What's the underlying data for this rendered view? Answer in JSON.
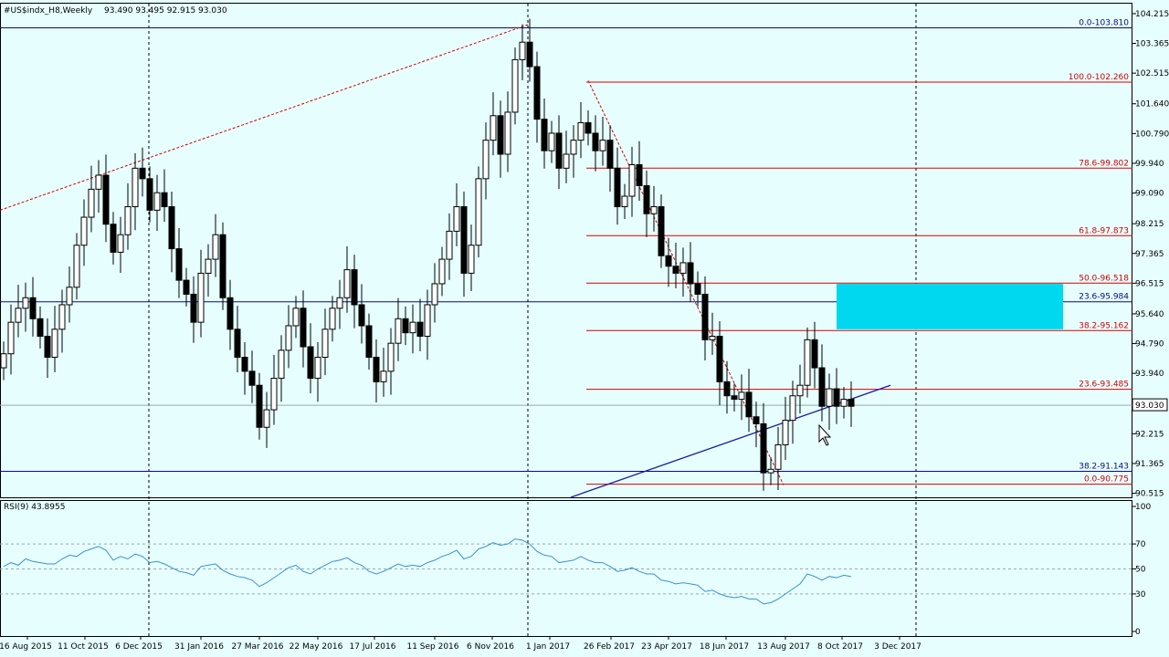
{
  "window": {
    "title": "#US$indx_H8,Weekly",
    "ohlc": "93.490 93.495 92.915 93.030"
  },
  "colors": {
    "background": "#e6fffe",
    "candle": "#000000",
    "grid": "#000000",
    "fib": "#d40000",
    "hline": "#0a0a7a",
    "trendline": "#1a1aa0",
    "zone": "#00d8f0",
    "rsi": "#3b8fd0"
  },
  "chart_data": {
    "type": "candlestick",
    "symbol": "#US$indx_H8",
    "timeframe": "Weekly",
    "last_price": "93.030",
    "price_axis_ticks": [
      "104.215",
      "103.365",
      "102.515",
      "101.640",
      "100.790",
      "99.940",
      "99.090",
      "98.215",
      "97.365",
      "96.515",
      "95.640",
      "94.790",
      "93.940",
      "93.090",
      "92.215",
      "91.365",
      "90.515"
    ],
    "date_axis_ticks": [
      "16 Aug 2015",
      "11 Oct 2015",
      "6 Dec 2015",
      "31 Jan 2016",
      "27 Mar 2016",
      "22 May 2016",
      "17 Jul 2016",
      "11 Sep 2016",
      "6 Nov 2016",
      "1 Jan 2017",
      "26 Feb 2017",
      "23 Apr 2017",
      "18 Jun 2017",
      "13 Aug 2017",
      "8 Oct 2017",
      "3 Dec 2017"
    ],
    "ylim": [
      90.4,
      104.5
    ],
    "fib_levels": [
      {
        "label": "0.0-103.810",
        "value": 103.81,
        "kind": "blue"
      },
      {
        "label": "100.0-102.260",
        "value": 102.26,
        "kind": "red"
      },
      {
        "label": "78.6-99.802",
        "value": 99.802,
        "kind": "red"
      },
      {
        "label": "61.8-97.873",
        "value": 97.873,
        "kind": "red"
      },
      {
        "label": "50.0-96.518",
        "value": 96.518,
        "kind": "red"
      },
      {
        "label": "23.6-95.984",
        "value": 95.984,
        "kind": "blue"
      },
      {
        "label": "38.2-95.162",
        "value": 95.162,
        "kind": "red"
      },
      {
        "label": "23.6-93.485",
        "value": 93.485,
        "kind": "red"
      },
      {
        "label": "38.2-91.143",
        "value": 91.143,
        "kind": "blue"
      },
      {
        "label": "0.0-90.775",
        "value": 90.775,
        "kind": "red"
      }
    ],
    "zone": {
      "from_week": 114,
      "to_week": 145,
      "low": 95.2,
      "high": 96.5
    },
    "closes": [
      94.5,
      95.4,
      95.8,
      96.1,
      95.5,
      95.0,
      94.4,
      95.2,
      95.9,
      96.4,
      97.6,
      98.4,
      99.2,
      99.6,
      98.2,
      97.4,
      97.9,
      98.7,
      99.8,
      99.5,
      98.6,
      99.1,
      98.7,
      97.5,
      96.6,
      96.2,
      95.4,
      96.8,
      97.2,
      97.9,
      96.1,
      95.2,
      94.4,
      94.0,
      93.6,
      92.4,
      92.9,
      93.8,
      94.6,
      95.3,
      95.8,
      94.7,
      93.8,
      94.4,
      95.2,
      95.8,
      96.1,
      96.9,
      95.9,
      95.3,
      94.4,
      93.7,
      94.0,
      94.8,
      95.5,
      95.1,
      95.4,
      95.0,
      95.9,
      96.5,
      97.2,
      98.0,
      98.7,
      96.8,
      97.6,
      99.5,
      100.6,
      101.3,
      100.2,
      101.4,
      102.9,
      103.4,
      102.7,
      101.2,
      100.3,
      100.8,
      99.8,
      100.2,
      100.6,
      101.1,
      100.8,
      100.3,
      100.6,
      99.8,
      98.7,
      99.0,
      99.9,
      99.3,
      98.5,
      98.7,
      97.3,
      97.0,
      96.8,
      97.1,
      96.5,
      96.2,
      94.9,
      95.0,
      93.7,
      93.3,
      93.2,
      93.4,
      92.7,
      92.5,
      91.1,
      91.2,
      91.9,
      92.6,
      93.3,
      93.6,
      94.9,
      94.1,
      93.0,
      93.5,
      93.0,
      93.2,
      93.0
    ],
    "rsi": {
      "label": "RSI(9) 43.8955",
      "levels": [
        "100",
        "70",
        "50",
        "30",
        "0"
      ],
      "dashed": [
        70,
        50,
        30
      ],
      "values": [
        52,
        55,
        53,
        58,
        56,
        55,
        54,
        54,
        58,
        61,
        60,
        64,
        66,
        68,
        65,
        57,
        60,
        58,
        62,
        60,
        55,
        56,
        54,
        51,
        48,
        47,
        45,
        52,
        53,
        54,
        49,
        46,
        44,
        43,
        41,
        36,
        39,
        43,
        47,
        51,
        53,
        48,
        46,
        50,
        53,
        56,
        57,
        59,
        55,
        53,
        48,
        46,
        48,
        51,
        54,
        52,
        53,
        52,
        55,
        57,
        60,
        62,
        65,
        58,
        60,
        66,
        68,
        71,
        69,
        70,
        74,
        73,
        70,
        64,
        61,
        60,
        55,
        56,
        57,
        60,
        57,
        55,
        55,
        52,
        48,
        49,
        51,
        48,
        46,
        46,
        41,
        40,
        38,
        39,
        38,
        37,
        32,
        33,
        30,
        28,
        27,
        28,
        26,
        26,
        22,
        23,
        26,
        30,
        34,
        38,
        46,
        44,
        41,
        44,
        43,
        45,
        43.9
      ]
    }
  }
}
